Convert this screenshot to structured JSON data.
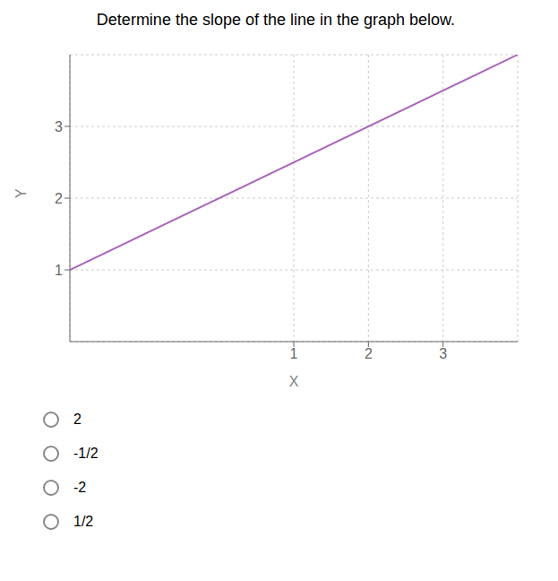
{
  "chart_data": {
    "type": "line",
    "title": "Determine the slope of the line in the graph below.",
    "x": [
      -2,
      4
    ],
    "values": [
      1,
      4
    ],
    "color": "#aa66bb",
    "xlim": [
      -2,
      4
    ],
    "ylim": [
      0,
      4
    ],
    "xticks": [
      1,
      2,
      3
    ],
    "yticks": [
      1,
      2,
      3
    ],
    "xlabel": "X",
    "ylabel": "Y",
    "grid": true,
    "annotations": [
      "2",
      "-1/2",
      "-2",
      "1/2"
    ]
  }
}
